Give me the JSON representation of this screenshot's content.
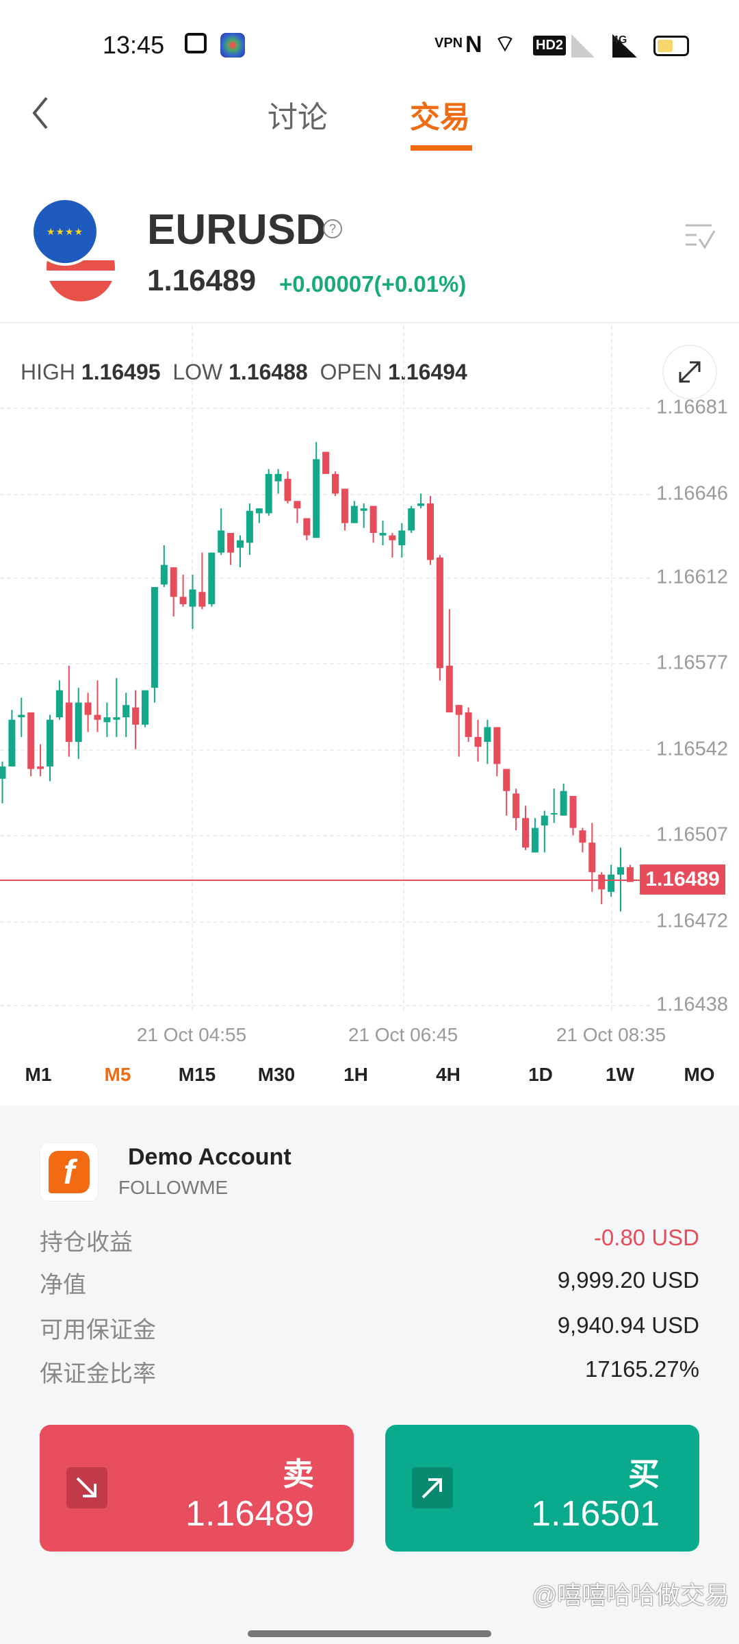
{
  "status_bar": {
    "time": "13:45",
    "icons": [
      "tv-app-icon",
      "colorful-app-icon",
      "vpn-icon",
      "nfc-icon",
      "wifi-icon",
      "hd2-icon",
      "signal-no-sim-icon",
      "signal-4g-icon",
      "battery-icon"
    ],
    "hd_label": "HD2",
    "net_label": "4G",
    "vpn_label": "VPN"
  },
  "header": {
    "tabs": [
      {
        "label": "讨论",
        "active": false
      },
      {
        "label": "交易",
        "active": true
      }
    ],
    "accent": "#ef6c12"
  },
  "symbol": {
    "name": "EURUSD",
    "price": "1.16489",
    "change": "+0.00007(+0.01%)",
    "change_color": "#1aaa7a"
  },
  "ohlc": {
    "high_label": "HIGH",
    "high": "1.16495",
    "low_label": "LOW",
    "low": "1.16488",
    "open_label": "OPEN",
    "open": "1.16494"
  },
  "chart_data": {
    "type": "candlestick",
    "y_ticks": [
      "1.16681",
      "1.16646",
      "1.16612",
      "1.16577",
      "1.16542",
      "1.16507",
      "1.16472",
      "1.16438"
    ],
    "ylim": [
      1.16438,
      1.16681
    ],
    "x_ticks": [
      "21 Oct  04:55",
      "21 Oct  06:45",
      "21 Oct  08:35"
    ],
    "current_price": "1.16489",
    "up_color": "#13a88a",
    "down_color": "#e74c5b",
    "candles": [
      [
        1.1653,
        1.16537,
        1.1652,
        1.16535
      ],
      [
        1.16535,
        1.16558,
        1.16535,
        1.16554
      ],
      [
        1.16555,
        1.16563,
        1.16547,
        1.16556
      ],
      [
        1.16557,
        1.16557,
        1.16531,
        1.16534
      ],
      [
        1.16535,
        1.16544,
        1.16531,
        1.16534
      ],
      [
        1.16535,
        1.16556,
        1.16529,
        1.16554
      ],
      [
        1.16555,
        1.1657,
        1.16554,
        1.16566
      ],
      [
        1.16561,
        1.16576,
        1.16539,
        1.16545
      ],
      [
        1.16545,
        1.16567,
        1.16538,
        1.16561
      ],
      [
        1.16561,
        1.16565,
        1.16549,
        1.16556
      ],
      [
        1.16556,
        1.1657,
        1.16549,
        1.16554
      ],
      [
        1.16553,
        1.16561,
        1.16547,
        1.16555
      ],
      [
        1.16554,
        1.16571,
        1.16547,
        1.16555
      ],
      [
        1.16555,
        1.16565,
        1.16547,
        1.1656
      ],
      [
        1.16559,
        1.16566,
        1.16542,
        1.16552
      ],
      [
        1.16552,
        1.16566,
        1.16551,
        1.16566
      ],
      [
        1.16567,
        1.16608,
        1.16561,
        1.16608
      ],
      [
        1.16609,
        1.16625,
        1.16608,
        1.16617
      ],
      [
        1.16616,
        1.16616,
        1.16596,
        1.16604
      ],
      [
        1.16604,
        1.16613,
        1.166,
        1.16601
      ],
      [
        1.166,
        1.16613,
        1.16591,
        1.16607
      ],
      [
        1.16606,
        1.16622,
        1.16599,
        1.166
      ],
      [
        1.16601,
        1.16622,
        1.166,
        1.16622
      ],
      [
        1.16622,
        1.1664,
        1.16621,
        1.16631
      ],
      [
        1.1663,
        1.1663,
        1.16617,
        1.16622
      ],
      [
        1.16624,
        1.16629,
        1.16616,
        1.16627
      ],
      [
        1.16626,
        1.16642,
        1.16621,
        1.16639
      ],
      [
        1.16638,
        1.1664,
        1.16634,
        1.1664
      ],
      [
        1.16638,
        1.16656,
        1.16637,
        1.16654
      ],
      [
        1.16651,
        1.16656,
        1.16646,
        1.16654
      ],
      [
        1.16652,
        1.16655,
        1.16642,
        1.16643
      ],
      [
        1.16643,
        1.16643,
        1.16634,
        1.1664
      ],
      [
        1.16636,
        1.16636,
        1.16627,
        1.16629
      ],
      [
        1.16628,
        1.16667,
        1.16628,
        1.1666
      ],
      [
        1.16663,
        1.16663,
        1.16654,
        1.16654
      ],
      [
        1.16654,
        1.16655,
        1.16645,
        1.16646
      ],
      [
        1.16648,
        1.16648,
        1.16631,
        1.16634
      ],
      [
        1.16634,
        1.16643,
        1.16634,
        1.16641
      ],
      [
        1.16639,
        1.16642,
        1.16632,
        1.1664
      ],
      [
        1.16641,
        1.16641,
        1.16626,
        1.1663
      ],
      [
        1.16629,
        1.16635,
        1.16625,
        1.1663
      ],
      [
        1.16629,
        1.1663,
        1.1662,
        1.16627
      ],
      [
        1.16625,
        1.16634,
        1.1662,
        1.16631
      ],
      [
        1.16631,
        1.16641,
        1.1663,
        1.1664
      ],
      [
        1.16641,
        1.16646,
        1.1664,
        1.16642
      ],
      [
        1.16642,
        1.16645,
        1.16617,
        1.16619
      ],
      [
        1.1662,
        1.16621,
        1.1657,
        1.16575
      ],
      [
        1.16576,
        1.16599,
        1.16557,
        1.16557
      ],
      [
        1.1656,
        1.1656,
        1.16539,
        1.16556
      ],
      [
        1.16557,
        1.16559,
        1.16545,
        1.16547
      ],
      [
        1.16547,
        1.16554,
        1.16537,
        1.16543
      ],
      [
        1.16545,
        1.16554,
        1.16536,
        1.16551
      ],
      [
        1.16551,
        1.16551,
        1.16531,
        1.16536
      ],
      [
        1.16534,
        1.16534,
        1.16515,
        1.16525
      ],
      [
        1.16524,
        1.16526,
        1.16509,
        1.16514
      ],
      [
        1.16514,
        1.16519,
        1.16501,
        1.16502
      ],
      [
        1.165,
        1.16514,
        1.165,
        1.1651
      ],
      [
        1.16511,
        1.16517,
        1.165,
        1.16515
      ],
      [
        1.16516,
        1.16526,
        1.16512,
        1.16516
      ],
      [
        1.16515,
        1.16528,
        1.16515,
        1.16525
      ],
      [
        1.16523,
        1.16523,
        1.16507,
        1.1651
      ],
      [
        1.16509,
        1.1651,
        1.165,
        1.16504
      ],
      [
        1.16504,
        1.16512,
        1.16484,
        1.16492
      ],
      [
        1.16491,
        1.16492,
        1.16479,
        1.16485
      ],
      [
        1.16484,
        1.16495,
        1.16482,
        1.16491
      ],
      [
        1.16491,
        1.16502,
        1.16476,
        1.16494
      ],
      [
        1.16494,
        1.16495,
        1.16488,
        1.16488
      ]
    ]
  },
  "timeframes": [
    {
      "label": "M1"
    },
    {
      "label": "M5",
      "active": true
    },
    {
      "label": "M15"
    },
    {
      "label": "M30"
    },
    {
      "label": "1H"
    },
    {
      "label": "4H"
    },
    {
      "label": "1D"
    },
    {
      "label": "1W"
    },
    {
      "label": "MO"
    }
  ],
  "account": {
    "name": "Demo Account",
    "broker": "FOLLOWME",
    "logo_color": "#f26a12",
    "rows": [
      {
        "label": "持仓收益",
        "value": "-0.80 USD",
        "color": "#e74c5b"
      },
      {
        "label": "净值",
        "value": "9,999.20 USD"
      },
      {
        "label": "可用保证金",
        "value": "9,940.94 USD"
      },
      {
        "label": "保证金比率",
        "value": "17165.27%"
      }
    ]
  },
  "trade": {
    "sell_label": "卖",
    "sell_price": "1.16489",
    "sell_color": "#e94e5e",
    "buy_label": "买",
    "buy_price": "1.16501",
    "buy_color": "#0aaa8c"
  },
  "watermark": "@嘻嘻哈哈做交易"
}
